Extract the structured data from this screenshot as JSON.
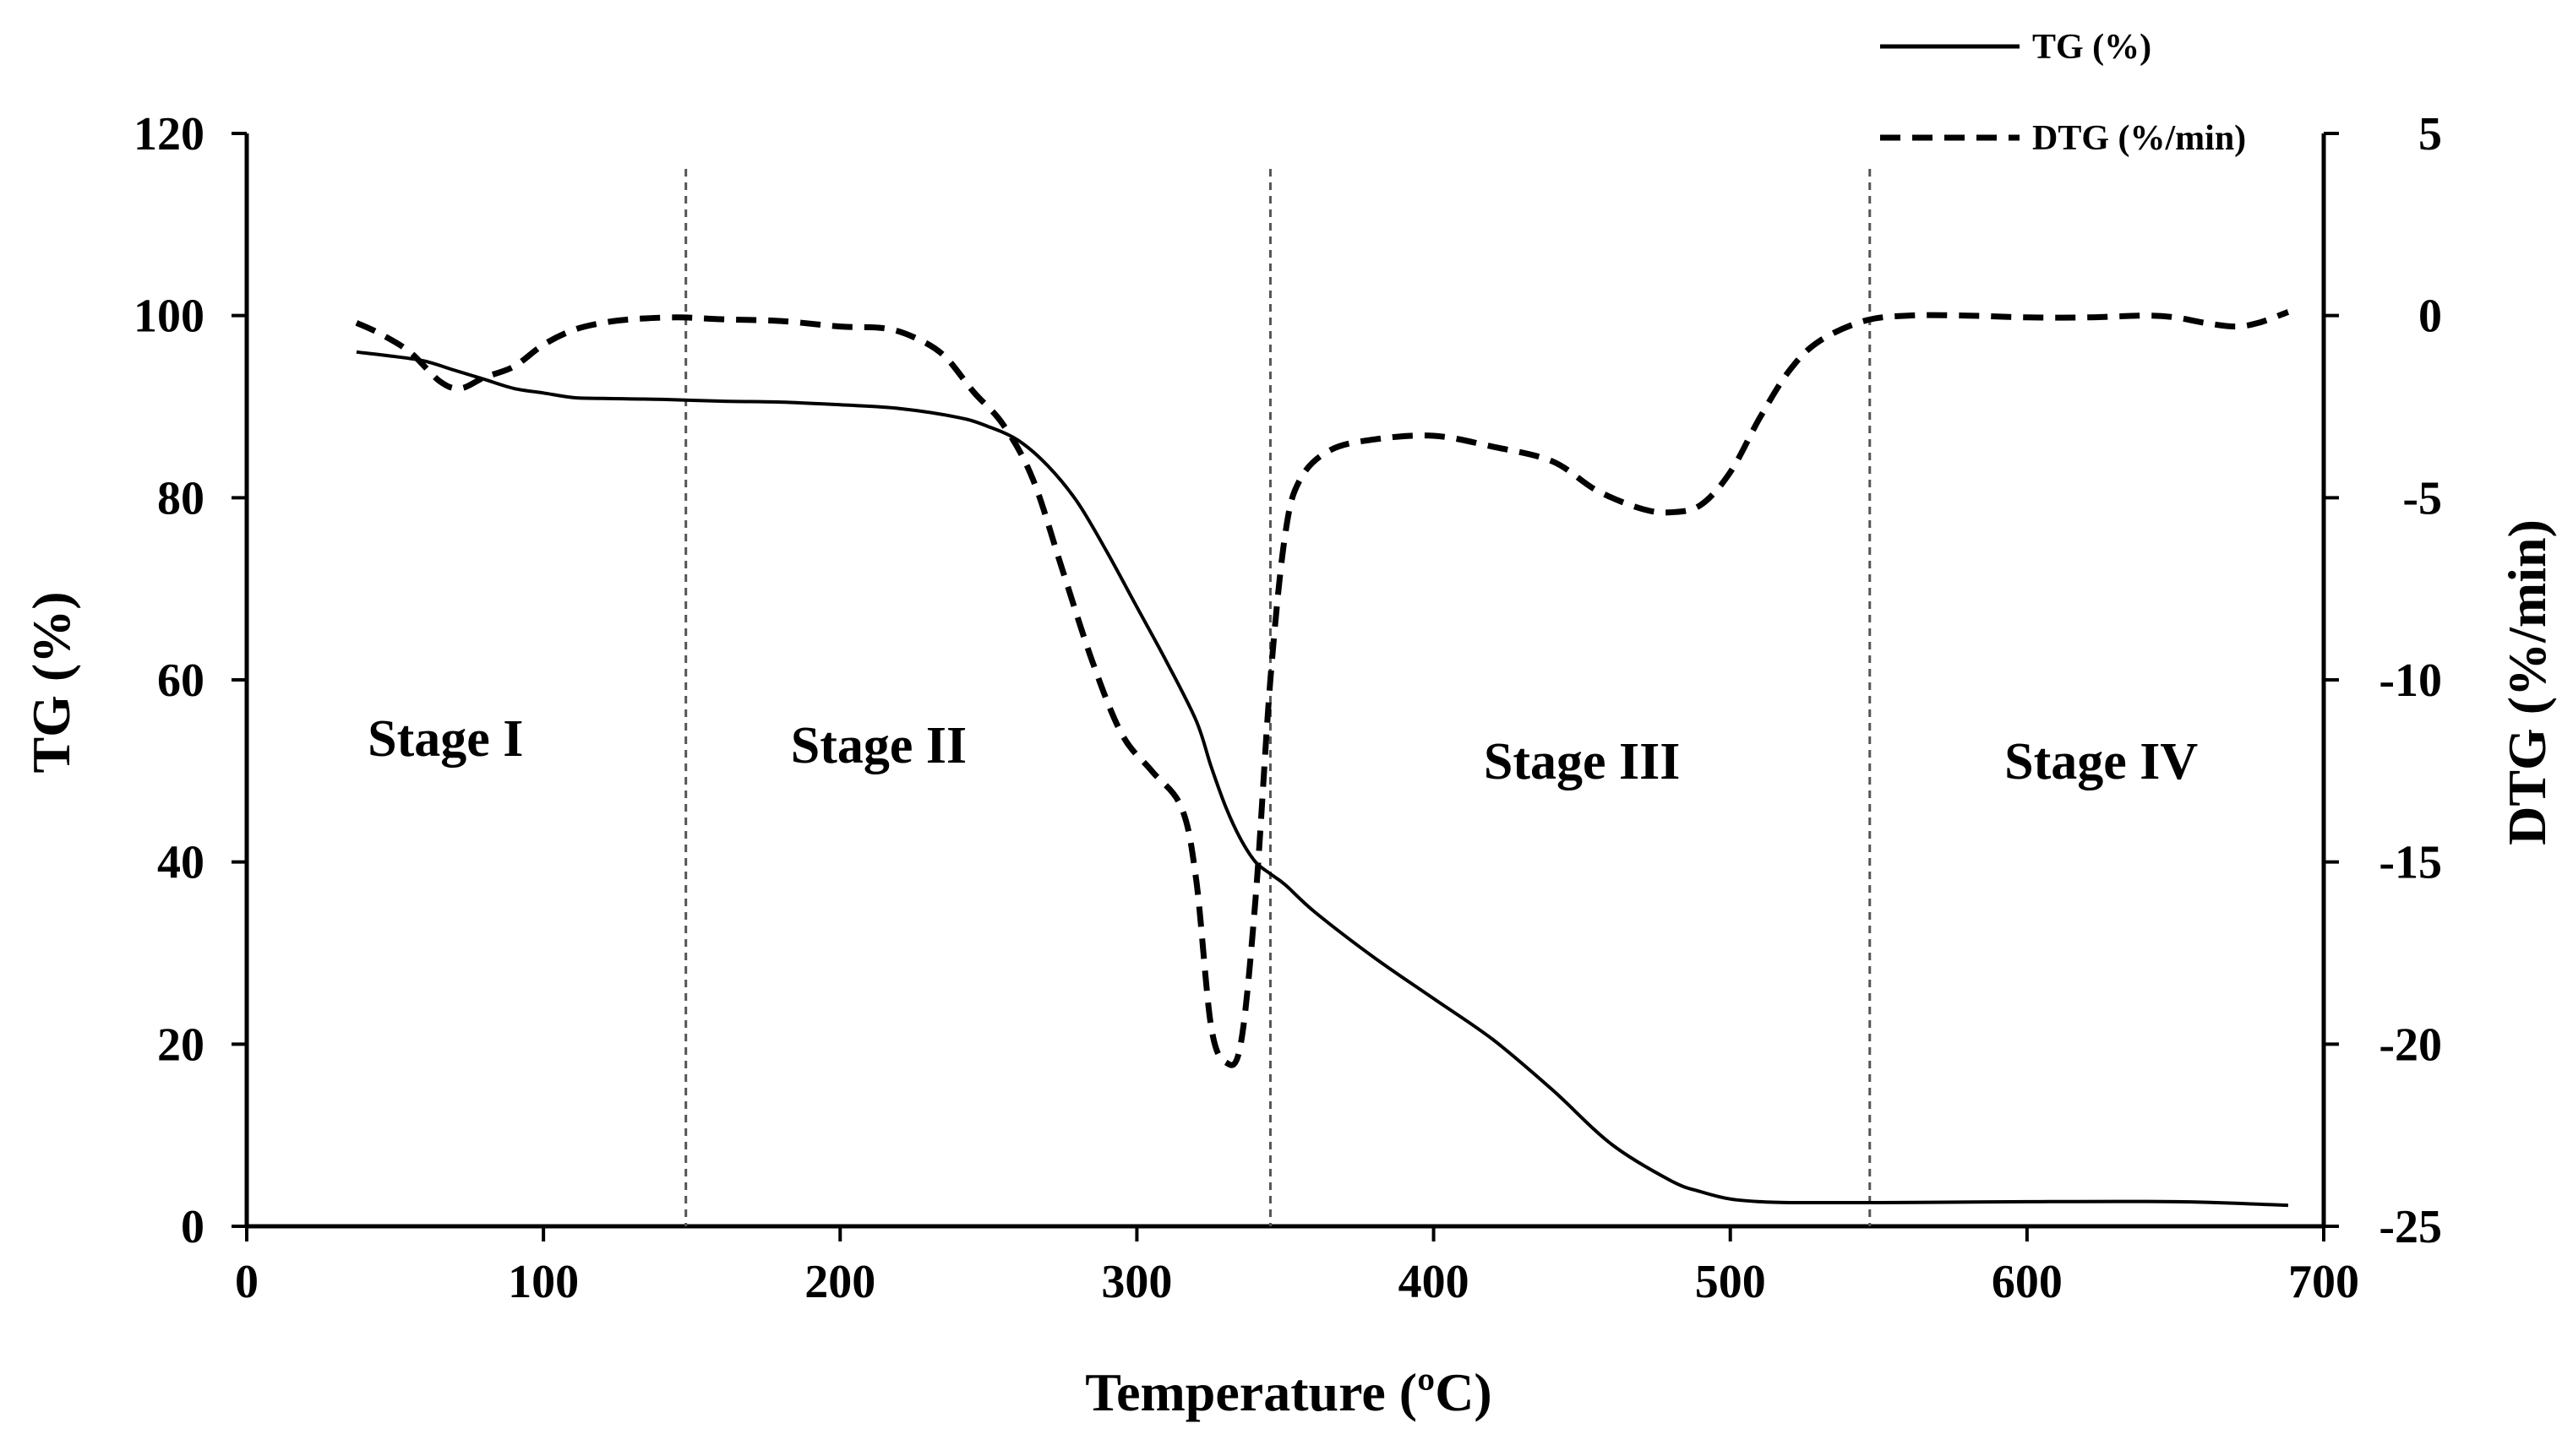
{
  "chart_data": {
    "type": "line",
    "title": "",
    "xlabel": "Temperature (ºC)",
    "ylabel": "TG (%)",
    "y2label": "DTG (%/min)",
    "xlim": [
      0,
      700
    ],
    "ylim": [
      0,
      120
    ],
    "y2lim": [
      -25,
      5
    ],
    "xticks": [
      "0",
      "100",
      "200",
      "300",
      "400",
      "500",
      "600",
      "700"
    ],
    "yticks": [
      "0",
      "20",
      "40",
      "60",
      "80",
      "100",
      "120"
    ],
    "y2ticks": [
      "-25",
      "-20",
      "-15",
      "-10",
      "-5",
      "0",
      "5"
    ],
    "grid": false,
    "legend_position": "top-right",
    "series": [
      {
        "name": "TG  (%)",
        "axis": "left",
        "style": "solid",
        "color": "#000000",
        "x": [
          37,
          50,
          60,
          70,
          80,
          90,
          100,
          110,
          120,
          140,
          160,
          180,
          200,
          220,
          240,
          250,
          260,
          270,
          280,
          290,
          300,
          310,
          320,
          325,
          330,
          335,
          340,
          345,
          350,
          360,
          380,
          400,
          420,
          440,
          460,
          480,
          490,
          500,
          510,
          520,
          530,
          550,
          600,
          650,
          680,
          688
        ],
        "values": [
          96,
          95.5,
          95,
          94,
          93,
          92,
          91.5,
          91,
          90.9,
          90.8,
          90.6,
          90.5,
          90.2,
          89.8,
          88.8,
          87.8,
          86.3,
          83.5,
          79.5,
          74,
          68,
          62,
          55.5,
          50.5,
          46,
          42.5,
          40,
          38.7,
          37.5,
          34.5,
          29.5,
          25,
          20.5,
          15,
          9,
          5,
          3.8,
          3,
          2.7,
          2.6,
          2.6,
          2.6,
          2.7,
          2.7,
          2.4,
          2.3
        ]
      },
      {
        "name": "DTG (%/min)",
        "axis": "right",
        "style": "dashed",
        "color": "#000000",
        "x": [
          37,
          45,
          55,
          65,
          72,
          80,
          90,
          100,
          110,
          120,
          130,
          145,
          160,
          180,
          200,
          215,
          225,
          235,
          245,
          255,
          265,
          275,
          285,
          295,
          305,
          315,
          320,
          325,
          330,
          335,
          340,
          345,
          350,
          355,
          365,
          380,
          400,
          420,
          440,
          455,
          470,
          480,
          490,
          500,
          510,
          520,
          530,
          545,
          560,
          580,
          600,
          620,
          640,
          650,
          660,
          670,
          678,
          688
        ],
        "values": [
          -0.2,
          -0.5,
          -1,
          -1.8,
          -2,
          -1.7,
          -1.4,
          -0.8,
          -0.4,
          -0.2,
          -0.1,
          -0.05,
          -0.1,
          -0.15,
          -0.3,
          -0.35,
          -0.6,
          -1.1,
          -2.1,
          -3,
          -4.5,
          -7,
          -9.5,
          -11.5,
          -12.5,
          -13.5,
          -15.5,
          -19.5,
          -20.5,
          -20,
          -16,
          -10,
          -6,
          -4.5,
          -3.7,
          -3.4,
          -3.3,
          -3.6,
          -4,
          -4.8,
          -5.3,
          -5.4,
          -5.2,
          -4.3,
          -2.8,
          -1.5,
          -0.7,
          -0.15,
          0,
          0,
          -0.05,
          -0.05,
          0,
          -0.05,
          -0.2,
          -0.3,
          -0.2,
          0.1
        ]
      }
    ],
    "vlines": [
      148,
      345,
      547
    ],
    "annotations": [
      {
        "text": "Stage I",
        "x": 67
      },
      {
        "text": "Stage II",
        "x": 213
      },
      {
        "text": "Stage III",
        "x": 450
      },
      {
        "text": "Stage IV",
        "x": 625
      }
    ]
  }
}
